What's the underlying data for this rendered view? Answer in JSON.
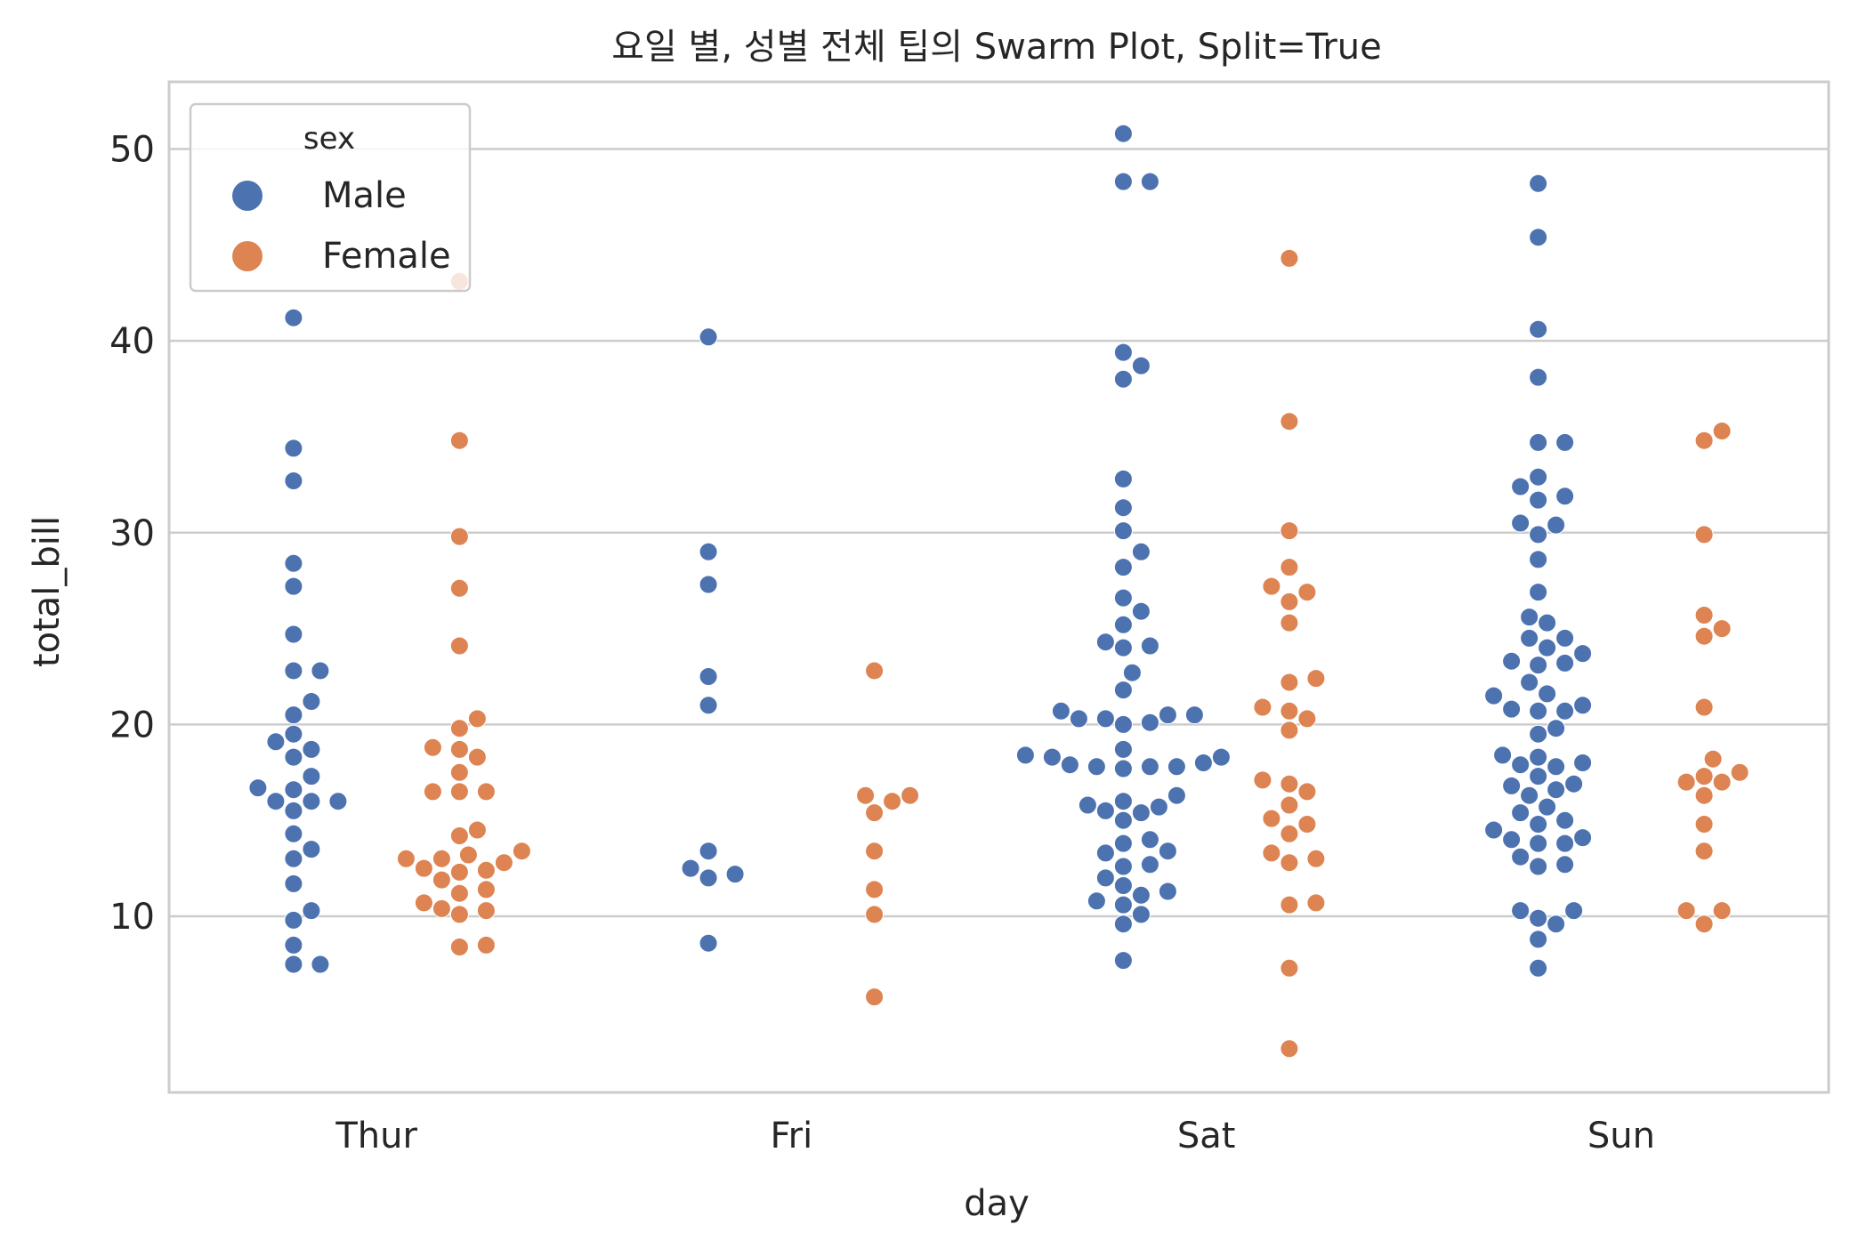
{
  "chart_data": {
    "type": "scatter",
    "subtype": "swarm",
    "title": "요일 별, 성별 전체 팁의 Swarm Plot, Split=True",
    "xlabel": "day",
    "ylabel": "total_bill",
    "categories": [
      "Thur",
      "Fri",
      "Sat",
      "Sun"
    ],
    "ylim": [
      0.82,
      53.5
    ],
    "yticks": [
      10,
      20,
      30,
      40,
      50
    ],
    "grid": true,
    "legend": {
      "title": "sex",
      "placement": "top-left"
    },
    "series": [
      {
        "name": "Male",
        "color": "#4c72b0",
        "points": [
          {
            "day": "Thur",
            "values": [
              41.2,
              34.4,
              32.7,
              28.4,
              27.2,
              24.7,
              22.8,
              22.8,
              21.2,
              20.5,
              19.5,
              19.1,
              18.7,
              18.3,
              17.3,
              16.7,
              16.6,
              16.0,
              16.0,
              16.0,
              15.5,
              14.3,
              13.5,
              13.0,
              11.7,
              10.3,
              9.8,
              8.5,
              7.5,
              7.5
            ]
          },
          {
            "day": "Fri",
            "values": [
              40.2,
              29.0,
              27.3,
              22.5,
              21.0,
              13.4,
              12.5,
              12.2,
              12.0,
              8.6
            ]
          },
          {
            "day": "Sat",
            "values": [
              50.8,
              48.3,
              48.3,
              39.4,
              38.7,
              38.0,
              32.8,
              31.3,
              30.1,
              29.0,
              28.2,
              26.6,
              25.9,
              25.2,
              24.3,
              24.1,
              24.0,
              22.7,
              21.8,
              20.7,
              20.5,
              20.5,
              20.3,
              20.3,
              20.1,
              20.0,
              18.7,
              18.4,
              18.3,
              18.3,
              18.0,
              17.9,
              17.8,
              17.8,
              17.8,
              17.7,
              16.3,
              16.0,
              15.8,
              15.7,
              15.5,
              15.4,
              15.0,
              14.0,
              13.8,
              13.4,
              13.3,
              12.7,
              12.6,
              12.0,
              11.6,
              11.3,
              11.1,
              10.8,
              10.6,
              10.1,
              9.6,
              7.7
            ]
          },
          {
            "day": "Sun",
            "values": [
              48.2,
              45.4,
              40.6,
              38.1,
              34.7,
              34.7,
              32.9,
              32.4,
              31.9,
              31.7,
              30.5,
              30.4,
              29.9,
              28.6,
              26.9,
              25.6,
              25.3,
              24.5,
              24.5,
              24.0,
              23.7,
              23.3,
              23.2,
              23.1,
              22.2,
              21.6,
              21.5,
              21.0,
              20.8,
              20.7,
              20.7,
              19.8,
              19.5,
              18.4,
              18.3,
              18.0,
              17.9,
              17.8,
              17.3,
              16.9,
              16.8,
              16.6,
              16.3,
              15.7,
              15.4,
              15.0,
              14.8,
              14.5,
              14.1,
              14.0,
              13.8,
              13.8,
              13.1,
              12.7,
              12.6,
              10.3,
              10.3,
              9.9,
              9.6,
              8.8,
              7.3
            ]
          }
        ]
      },
      {
        "name": "Female",
        "color": "#dd8452",
        "points": [
          {
            "day": "Thur",
            "values": [
              43.1,
              34.8,
              29.8,
              27.1,
              24.1,
              20.3,
              19.8,
              18.8,
              18.7,
              18.3,
              17.5,
              16.5,
              16.5,
              16.5,
              14.5,
              14.2,
              13.4,
              13.2,
              13.0,
              13.0,
              12.8,
              12.5,
              12.4,
              12.3,
              11.9,
              11.4,
              11.2,
              10.7,
              10.4,
              10.3,
              10.1,
              8.5,
              8.4
            ]
          },
          {
            "day": "Fri",
            "values": [
              22.8,
              16.3,
              16.3,
              16.0,
              15.4,
              13.4,
              11.4,
              10.1,
              5.8
            ]
          },
          {
            "day": "Sat",
            "values": [
              44.3,
              35.8,
              30.1,
              28.2,
              27.2,
              26.9,
              26.4,
              25.3,
              22.4,
              22.2,
              20.9,
              20.7,
              20.3,
              19.7,
              17.1,
              16.9,
              16.5,
              15.8,
              15.1,
              14.8,
              14.3,
              13.3,
              13.0,
              12.8,
              10.7,
              10.6,
              7.3,
              3.1
            ]
          },
          {
            "day": "Sun",
            "values": [
              35.3,
              34.8,
              29.9,
              25.7,
              25.0,
              24.6,
              20.9,
              18.2,
              17.5,
              17.3,
              17.0,
              17.0,
              16.3,
              14.8,
              13.4,
              10.3,
              10.3,
              9.6
            ]
          }
        ]
      }
    ]
  }
}
